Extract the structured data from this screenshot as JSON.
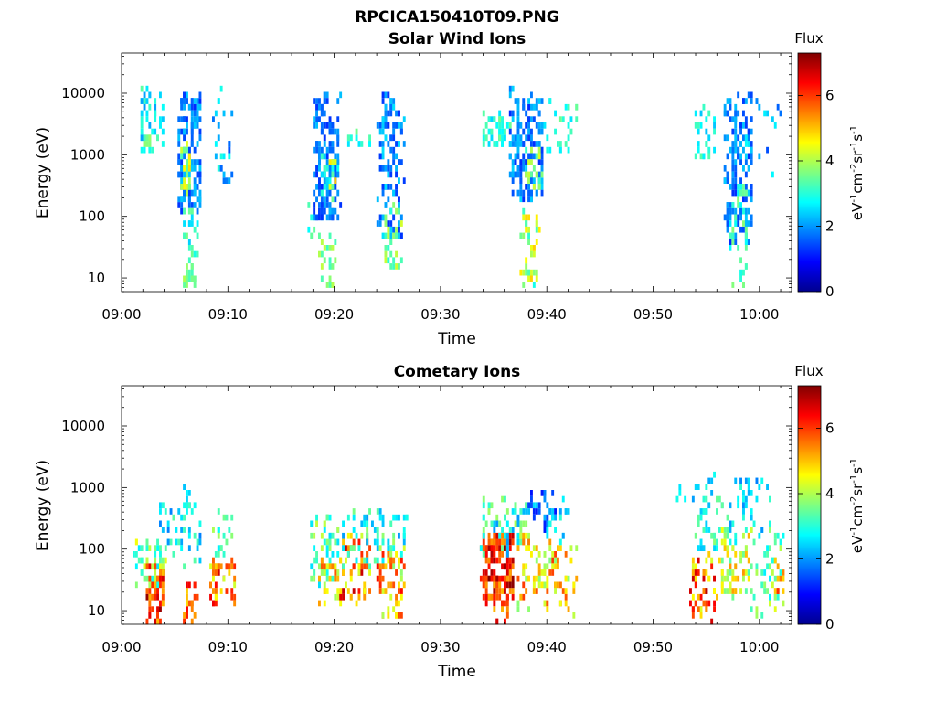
{
  "figure_title": "RPCICA150410T09.PNG",
  "chart_data": [
    {
      "type": "heatmap",
      "title": "Solar Wind Ions",
      "xlabel": "Time",
      "ylabel": "Energy (eV)",
      "x_ticks": [
        "09:00",
        "09:10",
        "09:20",
        "09:30",
        "09:40",
        "09:50",
        "10:00"
      ],
      "x_range_minutes": [
        0,
        63
      ],
      "y_scale": "log",
      "y_range": [
        6,
        45000
      ],
      "y_ticks": [
        "10",
        "100",
        "1000",
        "10000"
      ],
      "colorbar": {
        "label": "Flux",
        "unit": "eV-1cm-2sr-1s-1",
        "range": [
          0,
          7.3
        ],
        "ticks": [
          "0",
          "2",
          "4",
          "6"
        ],
        "colormap": "jet"
      },
      "blobs": [
        {
          "t": [
            1.6,
            3.8
          ],
          "e": [
            1300,
            13000
          ],
          "v": [
            2.0,
            3.4
          ],
          "n": 45
        },
        {
          "t": [
            1.8,
            2.8
          ],
          "e": [
            1600,
            2300
          ],
          "v": [
            3.0,
            3.9
          ],
          "n": 10
        },
        {
          "t": [
            5.2,
            7.3
          ],
          "e": [
            150,
            11000
          ],
          "v": [
            1.2,
            2.4
          ],
          "n": 140
        },
        {
          "t": [
            5.6,
            6.4
          ],
          "e": [
            300,
            1600
          ],
          "v": [
            3.0,
            4.8
          ],
          "n": 25
        },
        {
          "t": [
            5.8,
            7.0
          ],
          "e": [
            20,
            160
          ],
          "v": [
            2.4,
            3.6
          ],
          "n": 22
        },
        {
          "t": [
            5.8,
            6.8
          ],
          "e": [
            6,
            22
          ],
          "v": [
            3.0,
            4.0
          ],
          "n": 24
        },
        {
          "t": [
            8.6,
            10.2
          ],
          "e": [
            350,
            13000
          ],
          "v": [
            1.4,
            3.0
          ],
          "n": 25
        },
        {
          "t": [
            17.2,
            18.8
          ],
          "e": [
            60,
            220
          ],
          "v": [
            2.5,
            3.6
          ],
          "n": 8
        },
        {
          "t": [
            18.0,
            20.4
          ],
          "e": [
            100,
            12000
          ],
          "v": [
            1.2,
            2.3
          ],
          "n": 150
        },
        {
          "t": [
            18.6,
            20.3
          ],
          "e": [
            200,
            1200
          ],
          "v": [
            2.2,
            3.6
          ],
          "n": 22
        },
        {
          "t": [
            18.2,
            20.0
          ],
          "e": [
            8,
            60
          ],
          "v": [
            3.0,
            4.2
          ],
          "n": 22
        },
        {
          "t": [
            19.4,
            20.2
          ],
          "e": [
            300,
            900
          ],
          "v": [
            4.0,
            5.0
          ],
          "n": 6
        },
        {
          "t": [
            21.0,
            23.8
          ],
          "e": [
            1500,
            2500
          ],
          "v": [
            2.5,
            3.6
          ],
          "n": 12
        },
        {
          "t": [
            24.0,
            26.4
          ],
          "e": [
            50,
            11000
          ],
          "v": [
            1.2,
            2.6
          ],
          "n": 120
        },
        {
          "t": [
            24.6,
            26.2
          ],
          "e": [
            15,
            180
          ],
          "v": [
            2.6,
            4.4
          ],
          "n": 30
        },
        {
          "t": [
            33.8,
            36.4
          ],
          "e": [
            1500,
            5000
          ],
          "v": [
            2.4,
            3.6
          ],
          "n": 40
        },
        {
          "t": [
            36.4,
            39.6
          ],
          "e": [
            200,
            14000
          ],
          "v": [
            1.2,
            2.5
          ],
          "n": 150
        },
        {
          "t": [
            37.4,
            39.2
          ],
          "e": [
            8,
            150
          ],
          "v": [
            2.8,
            5.0
          ],
          "n": 40
        },
        {
          "t": [
            37.8,
            39.4
          ],
          "e": [
            300,
            1500
          ],
          "v": [
            3.0,
            4.4
          ],
          "n": 20
        },
        {
          "t": [
            39.6,
            42.8
          ],
          "e": [
            1000,
            8000
          ],
          "v": [
            2.4,
            3.6
          ],
          "n": 25
        },
        {
          "t": [
            53.8,
            56.0
          ],
          "e": [
            1000,
            7000
          ],
          "v": [
            2.2,
            3.4
          ],
          "n": 25
        },
        {
          "t": [
            56.6,
            59.2
          ],
          "e": [
            40,
            11000
          ],
          "v": [
            1.2,
            2.4
          ],
          "n": 150
        },
        {
          "t": [
            57.2,
            58.8
          ],
          "e": [
            8,
            400
          ],
          "v": [
            2.6,
            3.8
          ],
          "n": 40
        },
        {
          "t": [
            58.6,
            62.4
          ],
          "e": [
            500,
            8000
          ],
          "v": [
            1.4,
            2.8
          ],
          "n": 20
        }
      ]
    },
    {
      "type": "heatmap",
      "title": "Cometary Ions",
      "xlabel": "Time",
      "ylabel": "Energy (eV)",
      "x_ticks": [
        "09:00",
        "09:10",
        "09:20",
        "09:30",
        "09:40",
        "09:50",
        "10:00"
      ],
      "x_range_minutes": [
        0,
        63
      ],
      "y_scale": "log",
      "y_range": [
        6,
        45000
      ],
      "y_ticks": [
        "10",
        "100",
        "1000",
        "10000"
      ],
      "colorbar": {
        "label": "Flux",
        "unit": "eV-1cm-2sr-1s-1",
        "range": [
          0,
          7.3
        ],
        "ticks": [
          "0",
          "2",
          "4",
          "6"
        ],
        "colormap": "jet"
      },
      "blobs": [
        {
          "t": [
            1.0,
            4.0
          ],
          "e": [
            30,
            150
          ],
          "v": [
            2.5,
            4.5
          ],
          "n": 50
        },
        {
          "t": [
            2.2,
            3.8
          ],
          "e": [
            6,
            60
          ],
          "v": [
            5.0,
            7.2
          ],
          "n": 55
        },
        {
          "t": [
            3.5,
            7.4
          ],
          "e": [
            60,
            600
          ],
          "v": [
            1.8,
            3.6
          ],
          "n": 40
        },
        {
          "t": [
            5.8,
            7.0
          ],
          "e": [
            6,
            30
          ],
          "v": [
            4.6,
            6.6
          ],
          "n": 25
        },
        {
          "t": [
            5.8,
            6.4
          ],
          "e": [
            500,
            1100
          ],
          "v": [
            2.2,
            3.2
          ],
          "n": 8
        },
        {
          "t": [
            8.2,
            10.6
          ],
          "e": [
            15,
            80
          ],
          "v": [
            4.2,
            6.8
          ],
          "n": 50
        },
        {
          "t": [
            8.6,
            10.2
          ],
          "e": [
            80,
            500
          ],
          "v": [
            2.6,
            4.0
          ],
          "n": 20
        },
        {
          "t": [
            17.6,
            20.4
          ],
          "e": [
            30,
            400
          ],
          "v": [
            2.4,
            4.2
          ],
          "n": 60
        },
        {
          "t": [
            18.4,
            20.4
          ],
          "e": [
            15,
            80
          ],
          "v": [
            3.8,
            5.8
          ],
          "n": 30
        },
        {
          "t": [
            20.4,
            23.2
          ],
          "e": [
            15,
            200
          ],
          "v": [
            4.2,
            6.8
          ],
          "n": 70
        },
        {
          "t": [
            20.6,
            24.6
          ],
          "e": [
            60,
            500
          ],
          "v": [
            2.0,
            3.8
          ],
          "n": 50
        },
        {
          "t": [
            24.0,
            26.6
          ],
          "e": [
            8,
            150
          ],
          "v": [
            3.6,
            6.4
          ],
          "n": 60
        },
        {
          "t": [
            25.0,
            26.8
          ],
          "e": [
            100,
            400
          ],
          "v": [
            2.0,
            3.6
          ],
          "n": 20
        },
        {
          "t": [
            33.8,
            36.8
          ],
          "e": [
            15,
            200
          ],
          "v": [
            5.2,
            7.3
          ],
          "n": 130
        },
        {
          "t": [
            34.8,
            36.4
          ],
          "e": [
            8,
            40
          ],
          "v": [
            5.0,
            7.2
          ],
          "n": 30
        },
        {
          "t": [
            33.8,
            38.2
          ],
          "e": [
            100,
            800
          ],
          "v": [
            2.0,
            4.0
          ],
          "n": 60
        },
        {
          "t": [
            37.2,
            40.0
          ],
          "e": [
            12,
            200
          ],
          "v": [
            3.6,
            6.0
          ],
          "n": 50
        },
        {
          "t": [
            38.2,
            40.6
          ],
          "e": [
            250,
            1000
          ],
          "v": [
            1.0,
            2.6
          ],
          "n": 30
        },
        {
          "t": [
            39.6,
            42.6
          ],
          "e": [
            10,
            150
          ],
          "v": [
            3.6,
            6.0
          ],
          "n": 50
        },
        {
          "t": [
            40.0,
            42.0
          ],
          "e": [
            150,
            700
          ],
          "v": [
            2.0,
            3.2
          ],
          "n": 20
        },
        {
          "t": [
            52.0,
            55.6
          ],
          "e": [
            600,
            2000
          ],
          "v": [
            2.0,
            3.2
          ],
          "n": 12
        },
        {
          "t": [
            53.4,
            55.8
          ],
          "e": [
            8,
            100
          ],
          "v": [
            4.2,
            7.0
          ],
          "n": 60
        },
        {
          "t": [
            54.0,
            57.0
          ],
          "e": [
            100,
            800
          ],
          "v": [
            2.2,
            3.8
          ],
          "n": 40
        },
        {
          "t": [
            56.0,
            59.0
          ],
          "e": [
            20,
            250
          ],
          "v": [
            3.2,
            5.4
          ],
          "n": 60
        },
        {
          "t": [
            57.0,
            61.0
          ],
          "e": [
            150,
            1500
          ],
          "v": [
            1.8,
            3.2
          ],
          "n": 40
        },
        {
          "t": [
            59.0,
            62.2
          ],
          "e": [
            10,
            300
          ],
          "v": [
            2.6,
            4.4
          ],
          "n": 50
        },
        {
          "t": [
            61.4,
            62.4
          ],
          "e": [
            20,
            80
          ],
          "v": [
            4.8,
            6.4
          ],
          "n": 10
        }
      ]
    }
  ]
}
